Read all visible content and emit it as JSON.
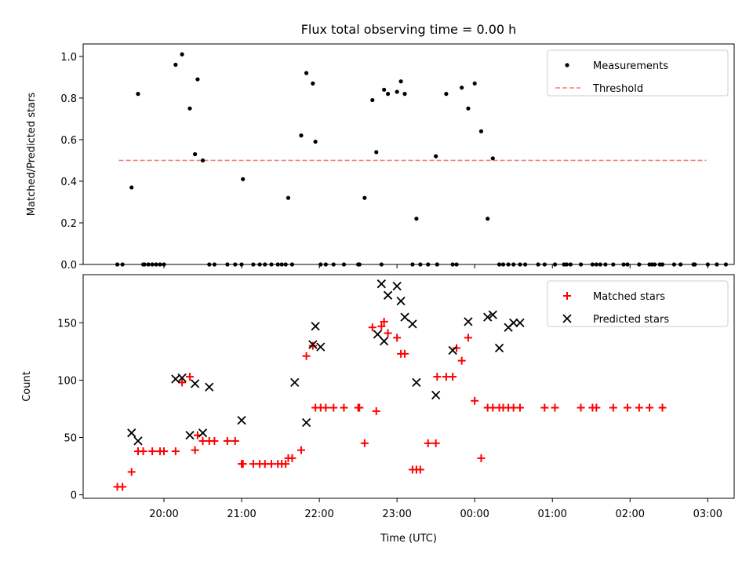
{
  "title": "Flux total observing time = 0.00 h",
  "xlabel": "Time (UTC)",
  "x_ticks": [
    "20:00",
    "21:00",
    "22:00",
    "23:00",
    "00:00",
    "01:00",
    "02:00",
    "03:00"
  ],
  "colors": {
    "measurement": "#000000",
    "threshold": "#f08080",
    "matched": "#ff0000",
    "predicted": "#000000"
  },
  "chart_data": [
    {
      "type": "scatter",
      "ylabel": "Matched/Predicted stars",
      "xlim_hours_since_2000": [
        18.96,
        27.34
      ],
      "ylim": [
        0,
        1.06
      ],
      "y_ticks": [
        "0.0",
        "0.2",
        "0.4",
        "0.6",
        "0.8",
        "1.0"
      ],
      "legend": {
        "placement": "upper right",
        "entries": [
          "Measurements",
          "Threshold"
        ]
      },
      "threshold": {
        "name": "Threshold",
        "value": 0.5,
        "x_range": [
          19.42,
          26.98
        ]
      },
      "series": [
        {
          "name": "Measurements",
          "marker": "dot",
          "x": [
            "19:24",
            "19:28",
            "19:35",
            "19:40",
            "19:44",
            "19:45",
            "19:48",
            "19:51",
            "19:54",
            "19:57",
            "20:00",
            "20:09",
            "20:14",
            "20:20",
            "20:24",
            "20:26",
            "20:30",
            "20:35",
            "20:39",
            "20:49",
            "20:55",
            "21:00",
            "21:01",
            "21:09",
            "21:14",
            "21:18",
            "21:23",
            "21:28",
            "21:31",
            "21:34",
            "21:36",
            "21:39",
            "21:46",
            "21:50",
            "21:55",
            "21:57",
            "22:01",
            "22:05",
            "22:11",
            "22:19",
            "22:30",
            "22:31",
            "22:35",
            "22:41",
            "22:44",
            "22:48",
            "22:50",
            "22:53",
            "23:00",
            "23:03",
            "23:06",
            "23:12",
            "23:15",
            "23:18",
            "23:24",
            "23:30",
            "23:31",
            "23:38",
            "23:43",
            "23:46",
            "23:50",
            "23:55",
            "00:00",
            "00:05",
            "00:10",
            "00:14",
            "00:19",
            "00:22",
            "00:26",
            "00:30",
            "00:35",
            "00:39",
            "00:49",
            "00:54",
            "01:02",
            "01:09",
            "01:11",
            "01:14",
            "01:22",
            "01:31",
            "01:34",
            "01:37",
            "01:41",
            "01:47",
            "01:55",
            "01:58",
            "02:07",
            "02:15",
            "02:17",
            "02:19",
            "02:23",
            "02:25",
            "02:34",
            "02:39",
            "02:49",
            "02:50",
            "03:00",
            "03:07",
            "03:14"
          ],
          "y": [
            0,
            0,
            0.37,
            0.82,
            0,
            0,
            0,
            0,
            0,
            0,
            0,
            0.96,
            1.01,
            0.75,
            0.53,
            0.89,
            0.5,
            0,
            0,
            0,
            0,
            0,
            0.41,
            0,
            0,
            0,
            0,
            0,
            0,
            0,
            0.32,
            0,
            0.62,
            0.92,
            0.87,
            0.59,
            0,
            0,
            0,
            0,
            0,
            0,
            0.32,
            0.79,
            0.54,
            0,
            0.84,
            0.82,
            0.83,
            0.88,
            0.82,
            0,
            0.22,
            0,
            0,
            0.52,
            0,
            0.82,
            0,
            0,
            0.85,
            0.75,
            0.87,
            0.64,
            0.22,
            0.51,
            0,
            0,
            0,
            0,
            0,
            0,
            0,
            0,
            0,
            0,
            0,
            0,
            0,
            0,
            0,
            0,
            0,
            0,
            0,
            0,
            0,
            0,
            0,
            0,
            0,
            0,
            0,
            0,
            0,
            0,
            0,
            0,
            0
          ]
        }
      ]
    },
    {
      "type": "scatter",
      "ylabel": "Count",
      "xlim_hours_since_2000": [
        18.96,
        27.34
      ],
      "ylim": [
        -3,
        192
      ],
      "y_ticks": [
        "0",
        "50",
        "100",
        "150"
      ],
      "legend": {
        "placement": "upper right",
        "entries": [
          "Matched stars",
          "Predicted stars"
        ]
      },
      "series": [
        {
          "name": "Matched stars",
          "marker": "plus",
          "x": [
            "19:24",
            "19:28",
            "19:35",
            "19:40",
            "19:44",
            "19:51",
            "19:57",
            "20:00",
            "20:09",
            "20:14",
            "20:20",
            "20:24",
            "20:26",
            "20:30",
            "20:35",
            "20:39",
            "20:49",
            "20:55",
            "21:00",
            "21:01",
            "21:09",
            "21:14",
            "21:18",
            "21:23",
            "21:28",
            "21:31",
            "21:34",
            "21:36",
            "21:39",
            "21:46",
            "21:50",
            "21:55",
            "21:57",
            "22:01",
            "22:05",
            "22:11",
            "22:19",
            "22:30",
            "22:31",
            "22:35",
            "22:41",
            "22:44",
            "22:48",
            "22:50",
            "22:53",
            "23:00",
            "23:03",
            "23:06",
            "23:12",
            "23:15",
            "23:18",
            "23:24",
            "23:30",
            "23:31",
            "23:38",
            "23:43",
            "23:46",
            "23:50",
            "23:55",
            "00:00",
            "00:05",
            "00:10",
            "00:14",
            "00:19",
            "00:22",
            "00:26",
            "00:30",
            "00:35",
            "00:54",
            "01:02",
            "01:22",
            "01:31",
            "01:34",
            "01:47",
            "01:58",
            "02:07",
            "02:15",
            "02:25"
          ],
          "y": [
            7,
            7,
            20,
            38,
            38,
            38,
            38,
            38,
            38,
            98,
            103,
            39,
            52,
            47,
            47,
            47,
            47,
            47,
            27,
            27,
            27,
            27,
            27,
            27,
            27,
            27,
            27,
            32,
            32,
            39,
            121,
            130,
            76,
            76,
            76,
            76,
            76,
            76,
            76,
            45,
            146,
            73,
            147,
            151,
            141,
            137,
            123,
            123,
            22,
            22,
            22,
            45,
            45,
            103,
            103,
            103,
            128,
            117,
            137,
            82,
            32,
            76,
            76,
            76,
            76,
            76,
            76,
            76,
            76,
            76,
            76,
            76,
            76,
            76,
            76,
            76,
            76,
            76
          ]
        },
        {
          "name": "Predicted stars",
          "marker": "x",
          "x": [
            "19:35",
            "19:40",
            "20:09",
            "20:14",
            "20:24",
            "20:20",
            "20:30",
            "20:35",
            "21:00",
            "21:41",
            "21:50",
            "21:55",
            "21:57",
            "22:01",
            "22:45",
            "22:48",
            "22:50",
            "22:53",
            "23:00",
            "23:03",
            "23:06",
            "23:12",
            "23:15",
            "23:30",
            "23:43",
            "23:55",
            "00:10",
            "00:14",
            "00:19",
            "00:26",
            "00:30",
            "00:35"
          ],
          "y": [
            54,
            47,
            101,
            102,
            97,
            52,
            54,
            94,
            65,
            98,
            63,
            131,
            147,
            129,
            140,
            184,
            134,
            174,
            182,
            169,
            155,
            149,
            98,
            87,
            126,
            151,
            155,
            157,
            128,
            146,
            150,
            150
          ]
        }
      ]
    }
  ]
}
